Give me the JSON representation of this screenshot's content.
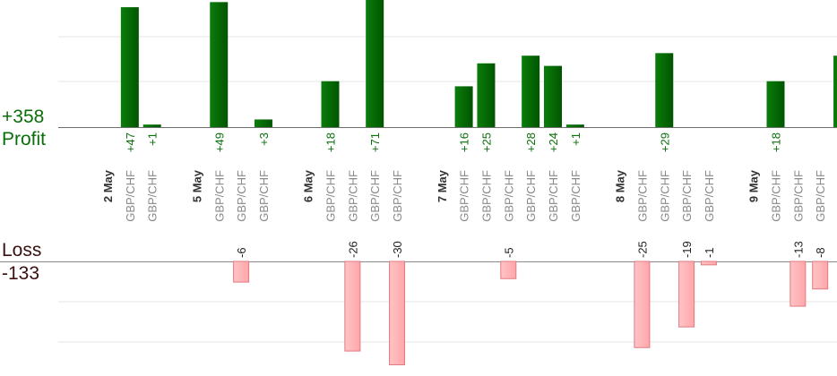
{
  "summary": {
    "profit_total": "+358",
    "profit_label": "Profit",
    "loss_label": "Loss",
    "loss_total": "-133"
  },
  "colors": {
    "profit_bar_dark": "#005500",
    "profit_bar_light": "#0b7d0b",
    "profit_text": "#0a6f0a",
    "loss_bar_fill": "#ffb6b9",
    "loss_bar_stroke": "#e07a80",
    "date_label": "#333333",
    "pair_label": "#888888",
    "loss_text": "#3a1010"
  },
  "chart_data": {
    "type": "bar",
    "title": "",
    "xlabel": "",
    "ylabel": "",
    "grid": true,
    "profit_ylim": [
      0,
      50
    ],
    "loss_ylim": [
      -40,
      0
    ],
    "categories": [
      {
        "label": "2 May",
        "kind": "date"
      },
      {
        "label": "GBP/CHF",
        "kind": "pair",
        "value": 47
      },
      {
        "label": "GBP/CHF",
        "kind": "pair",
        "value": 1
      },
      {
        "label": "",
        "kind": "gap"
      },
      {
        "label": "5 May",
        "kind": "date"
      },
      {
        "label": "GBP/CHF",
        "kind": "pair",
        "value": 49
      },
      {
        "label": "GBP/CHF",
        "kind": "pair",
        "value": -6
      },
      {
        "label": "GBP/CHF",
        "kind": "pair",
        "value": 3
      },
      {
        "label": "",
        "kind": "gap"
      },
      {
        "label": "6 May",
        "kind": "date"
      },
      {
        "label": "GBP/CHF",
        "kind": "pair",
        "value": 18
      },
      {
        "label": "GBP/CHF",
        "kind": "pair",
        "value": -26
      },
      {
        "label": "GBP/CHF",
        "kind": "pair",
        "value": 71
      },
      {
        "label": "GBP/CHF",
        "kind": "pair",
        "value": -30
      },
      {
        "label": "",
        "kind": "gap"
      },
      {
        "label": "7 May",
        "kind": "date"
      },
      {
        "label": "GBP/CHF",
        "kind": "pair",
        "value": 16
      },
      {
        "label": "GBP/CHF",
        "kind": "pair",
        "value": 25
      },
      {
        "label": "GBP/CHF",
        "kind": "pair",
        "value": -5
      },
      {
        "label": "GBP/CHF",
        "kind": "pair",
        "value": 28
      },
      {
        "label": "GBP/CHF",
        "kind": "pair",
        "value": 24
      },
      {
        "label": "GBP/CHF",
        "kind": "pair",
        "value": 1
      },
      {
        "label": "",
        "kind": "gap"
      },
      {
        "label": "8 May",
        "kind": "date"
      },
      {
        "label": "GBP/CHF",
        "kind": "pair",
        "value": -25
      },
      {
        "label": "GBP/CHF",
        "kind": "pair",
        "value": 29
      },
      {
        "label": "GBP/CHF",
        "kind": "pair",
        "value": -19
      },
      {
        "label": "GBP/CHF",
        "kind": "pair",
        "value": -1
      },
      {
        "label": "",
        "kind": "gap"
      },
      {
        "label": "9 May",
        "kind": "date"
      },
      {
        "label": "GBP/CHF",
        "kind": "pair",
        "value": 18
      },
      {
        "label": "GBP/CHF",
        "kind": "pair",
        "value": -13
      },
      {
        "label": "GBP/CHF",
        "kind": "pair",
        "value": -8
      },
      {
        "label": "GBP/CHF",
        "kind": "pair",
        "value": 28
      }
    ]
  }
}
